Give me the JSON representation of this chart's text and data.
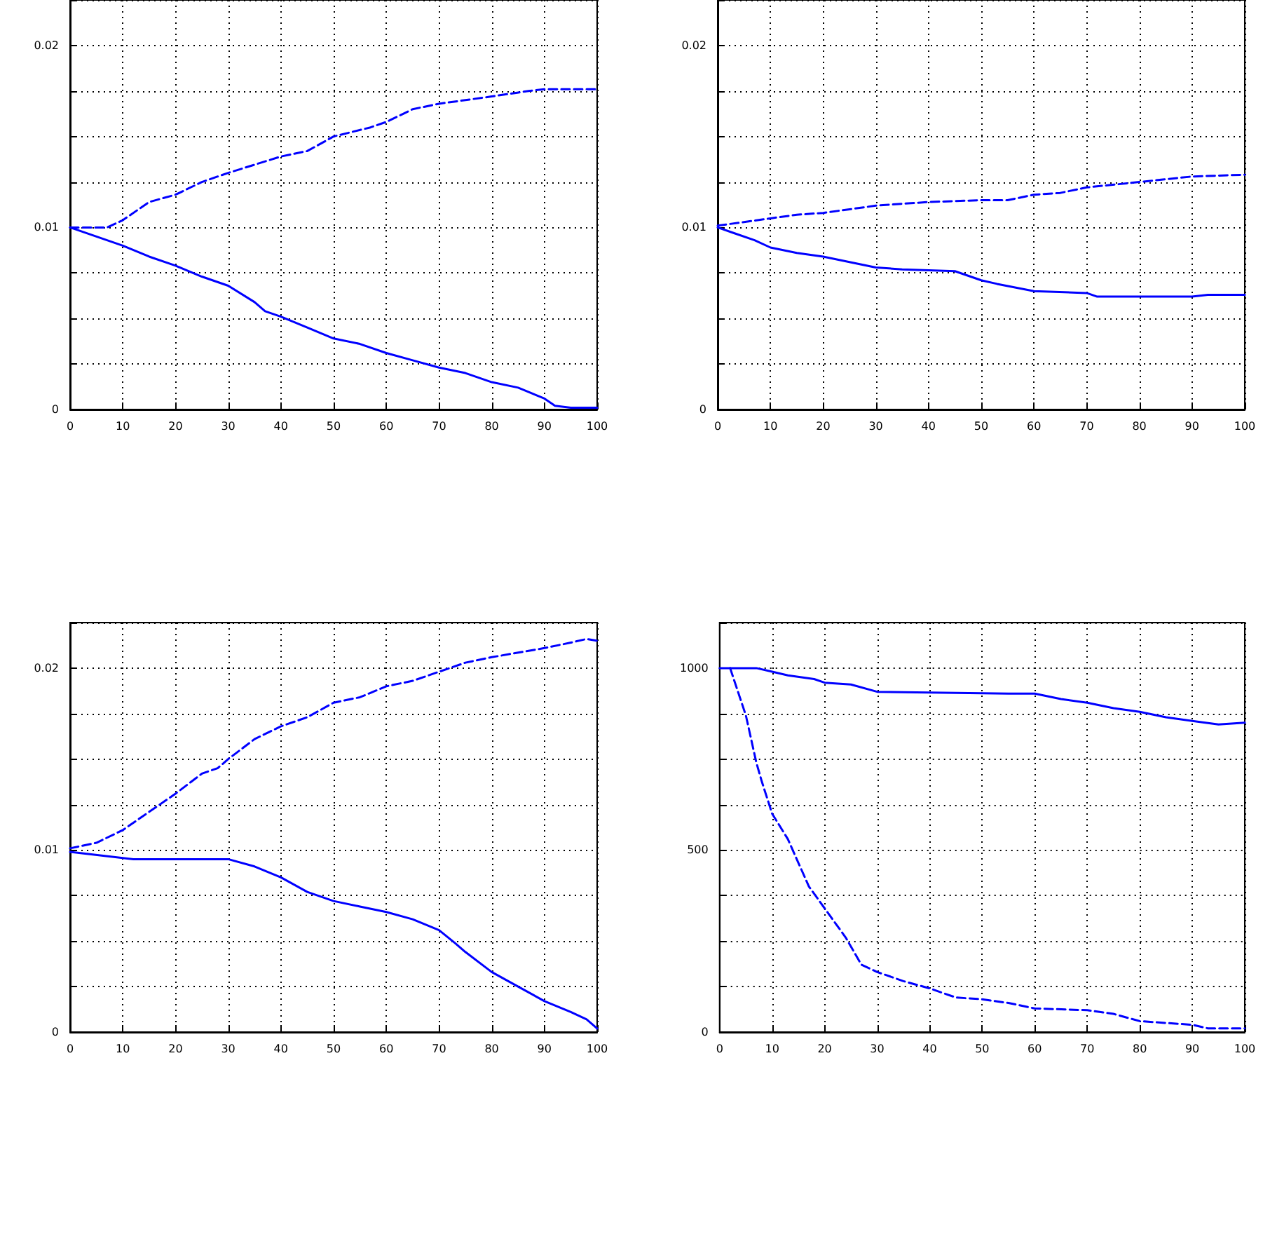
{
  "chart_data": [
    {
      "type": "line",
      "xlim": [
        0,
        100
      ],
      "xticks": [
        0,
        10,
        20,
        30,
        40,
        50,
        60,
        70,
        80,
        90,
        100
      ],
      "ylim": [
        0,
        0.0225
      ],
      "yticks": [
        0,
        {
          "value": 0.0025,
          "label": null
        },
        {
          "value": 0.005,
          "label": null
        },
        {
          "value": 0.0075,
          "label": null
        },
        0.01,
        {
          "value": 0.0125,
          "label": null
        },
        {
          "value": 0.015,
          "label": null
        },
        {
          "value": 0.0175,
          "label": null
        },
        0.02
      ],
      "grid": true,
      "series": [
        {
          "color": "#0000ff",
          "line_style": "dashed",
          "x": [
            0,
            7,
            10,
            15,
            20,
            25,
            30,
            40,
            45,
            50,
            57,
            60,
            65,
            70,
            80,
            87,
            90,
            100
          ],
          "values": [
            0.01,
            0.01,
            0.0104,
            0.0114,
            0.0118,
            0.0125,
            0.013,
            0.0139,
            0.0142,
            0.015,
            0.0155,
            0.0158,
            0.0165,
            0.0168,
            0.0172,
            0.0175,
            0.0176,
            0.0176
          ]
        },
        {
          "color": "#0000ff",
          "line_style": "solid",
          "x": [
            0,
            10,
            15,
            20,
            25,
            30,
            35,
            37,
            40,
            45,
            50,
            55,
            60,
            65,
            70,
            75,
            80,
            85,
            90,
            92,
            95,
            100
          ],
          "values": [
            0.01,
            0.009,
            0.0084,
            0.0079,
            0.0073,
            0.0068,
            0.0059,
            0.0054,
            0.0051,
            0.0045,
            0.0039,
            0.0036,
            0.0031,
            0.0027,
            0.0023,
            0.002,
            0.0015,
            0.0012,
            0.0006,
            0.0002,
            0.0001,
            0.0001
          ]
        }
      ]
    },
    {
      "type": "line",
      "xlim": [
        0,
        100
      ],
      "xticks": [
        0,
        10,
        20,
        30,
        40,
        50,
        60,
        70,
        80,
        90,
        100
      ],
      "ylim": [
        0,
        0.0225
      ],
      "yticks": [
        0,
        {
          "value": 0.0025,
          "label": null
        },
        {
          "value": 0.005,
          "label": null
        },
        {
          "value": 0.0075,
          "label": null
        },
        0.01,
        {
          "value": 0.0125,
          "label": null
        },
        {
          "value": 0.015,
          "label": null
        },
        {
          "value": 0.0175,
          "label": null
        },
        0.02
      ],
      "grid": true,
      "series": [
        {
          "color": "#0000ff",
          "line_style": "dashed",
          "x": [
            0,
            10,
            15,
            20,
            30,
            40,
            50,
            55,
            60,
            65,
            70,
            80,
            90,
            100
          ],
          "values": [
            0.0101,
            0.0105,
            0.0107,
            0.0108,
            0.0112,
            0.0114,
            0.0115,
            0.0115,
            0.0118,
            0.0119,
            0.0122,
            0.0125,
            0.0128,
            0.0129
          ]
        },
        {
          "color": "#0000ff",
          "line_style": "solid",
          "x": [
            0,
            3,
            7,
            10,
            15,
            20,
            25,
            30,
            35,
            45,
            50,
            53,
            60,
            70,
            72,
            85,
            90,
            93,
            100
          ],
          "values": [
            0.01,
            0.0097,
            0.0093,
            0.0089,
            0.0086,
            0.0084,
            0.0081,
            0.0078,
            0.0077,
            0.0076,
            0.0071,
            0.0069,
            0.0065,
            0.0064,
            0.0062,
            0.0062,
            0.0062,
            0.0063,
            0.0063
          ]
        }
      ]
    },
    {
      "type": "line",
      "xlim": [
        0,
        100
      ],
      "xticks": [
        0,
        10,
        20,
        30,
        40,
        50,
        60,
        70,
        80,
        90,
        100
      ],
      "ylim": [
        0,
        0.0225
      ],
      "yticks": [
        0,
        {
          "value": 0.0025,
          "label": null
        },
        {
          "value": 0.005,
          "label": null
        },
        {
          "value": 0.0075,
          "label": null
        },
        0.01,
        {
          "value": 0.0125,
          "label": null
        },
        {
          "value": 0.015,
          "label": null
        },
        {
          "value": 0.0175,
          "label": null
        },
        0.02
      ],
      "grid": true,
      "series": [
        {
          "color": "#0000ff",
          "line_style": "dashed",
          "x": [
            0,
            5,
            10,
            15,
            20,
            25,
            28,
            30,
            35,
            40,
            45,
            50,
            55,
            60,
            65,
            70,
            75,
            80,
            90,
            95,
            98,
            100
          ],
          "values": [
            0.0101,
            0.0104,
            0.0111,
            0.0121,
            0.0131,
            0.0142,
            0.0145,
            0.015,
            0.0161,
            0.0168,
            0.0173,
            0.0181,
            0.0184,
            0.019,
            0.0193,
            0.0198,
            0.0203,
            0.0206,
            0.0211,
            0.0214,
            0.0216,
            0.0215
          ]
        },
        {
          "color": "#0000ff",
          "line_style": "solid",
          "x": [
            0,
            12,
            30,
            35,
            40,
            45,
            50,
            55,
            60,
            65,
            70,
            73,
            75,
            80,
            85,
            90,
            95,
            98,
            100
          ],
          "values": [
            0.0099,
            0.0095,
            0.0095,
            0.0091,
            0.0085,
            0.0077,
            0.0072,
            0.0069,
            0.0066,
            0.0062,
            0.0056,
            0.0049,
            0.0044,
            0.0033,
            0.0025,
            0.0017,
            0.0011,
            0.0007,
            0.0002
          ]
        }
      ]
    },
    {
      "type": "line",
      "xlim": [
        0,
        100
      ],
      "xticks": [
        0,
        10,
        20,
        30,
        40,
        50,
        60,
        70,
        80,
        90,
        100
      ],
      "ylim": [
        0,
        1125
      ],
      "yticks": [
        0,
        {
          "value": 125,
          "label": null
        },
        {
          "value": 250,
          "label": null
        },
        {
          "value": 375,
          "label": null
        },
        500,
        {
          "value": 625,
          "label": null
        },
        {
          "value": 750,
          "label": null
        },
        {
          "value": 875,
          "label": null
        },
        1000
      ],
      "grid": true,
      "series": [
        {
          "color": "#0000ff",
          "line_style": "solid",
          "x": [
            0,
            7,
            10,
            13,
            18,
            20,
            25,
            30,
            55,
            60,
            65,
            70,
            75,
            80,
            85,
            90,
            95,
            100
          ],
          "values": [
            1000,
            1000,
            990,
            980,
            970,
            960,
            955,
            935,
            930,
            930,
            915,
            905,
            890,
            880,
            865,
            855,
            845,
            850
          ]
        },
        {
          "color": "#0000ff",
          "line_style": "dashed",
          "x": [
            2,
            5,
            7,
            8,
            10,
            13,
            17,
            20,
            24,
            27,
            30,
            35,
            40,
            45,
            50,
            55,
            60,
            70,
            75,
            80,
            85,
            90,
            93,
            100
          ],
          "values": [
            1000,
            870,
            740,
            690,
            600,
            530,
            400,
            340,
            260,
            185,
            165,
            140,
            120,
            95,
            90,
            80,
            65,
            60,
            50,
            30,
            25,
            20,
            10,
            10
          ]
        }
      ]
    }
  ]
}
